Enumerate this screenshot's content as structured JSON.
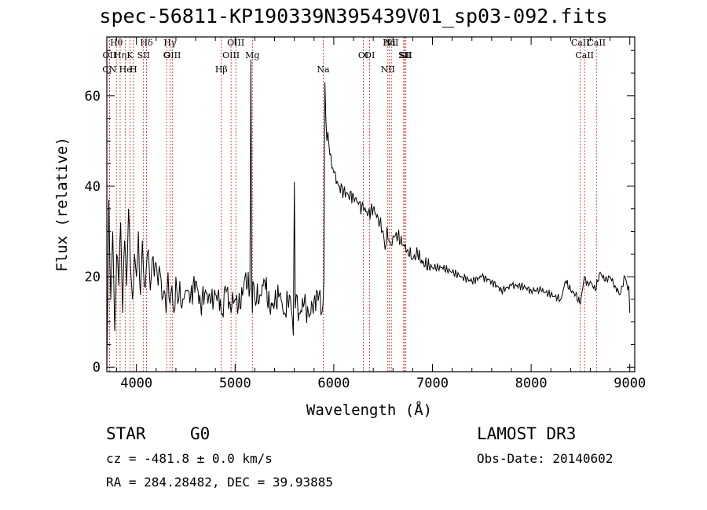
{
  "title": "spec-56811-KP190339N395439V01_sp03-092.fits",
  "info": {
    "object_class": "STAR",
    "subclass": "G0",
    "cz": "cz = -481.8 ± 0.0 km/s",
    "coords": "RA = 284.28482, DEC =  39.93885",
    "survey": "LAMOST DR3",
    "obs_date": "Obs-Date: 20140602"
  },
  "colors": {
    "spectrum": "#000000",
    "line_marker": "#c8281e",
    "axis": "#000000"
  },
  "chart_data": {
    "type": "line",
    "title": "spec-56811-KP190339N395439V01_sp03-092.fits",
    "xlabel": "Wavelength (Å)",
    "ylabel": "Flux (relative)",
    "xlim": [
      3700,
      9050
    ],
    "ylim": [
      -1,
      73
    ],
    "xticks": [
      4000,
      5000,
      6000,
      7000,
      8000,
      9000
    ],
    "yticks": [
      0,
      20,
      40,
      60
    ],
    "series": [
      {
        "name": "flux",
        "x": [
          3700,
          3720,
          3740,
          3760,
          3780,
          3800,
          3820,
          3840,
          3860,
          3880,
          3900,
          3920,
          3940,
          3960,
          3980,
          4000,
          4020,
          4040,
          4060,
          4080,
          4100,
          4120,
          4140,
          4160,
          4180,
          4200,
          4220,
          4240,
          4260,
          4280,
          4300,
          4320,
          4340,
          4360,
          4380,
          4400,
          4420,
          4440,
          4460,
          4480,
          4500,
          4550,
          4600,
          4650,
          4700,
          4750,
          4800,
          4850,
          4880,
          4900,
          4950,
          5000,
          5050,
          5100,
          5150,
          5160,
          5170,
          5175,
          5180,
          5200,
          5250,
          5300,
          5350,
          5400,
          5450,
          5500,
          5550,
          5580,
          5590,
          5600,
          5610,
          5620,
          5650,
          5700,
          5750,
          5800,
          5850,
          5880,
          5900,
          5910,
          5920,
          5930,
          5940,
          5960,
          5980,
          6000,
          6050,
          6100,
          6150,
          6200,
          6250,
          6300,
          6350,
          6400,
          6450,
          6500,
          6520,
          6540,
          6560,
          6580,
          6600,
          6650,
          6700,
          6750,
          6800,
          6850,
          6900,
          7000,
          7100,
          7200,
          7300,
          7400,
          7500,
          7600,
          7700,
          7800,
          7900,
          8000,
          8100,
          8200,
          8300,
          8350,
          8400,
          8450,
          8500,
          8540,
          8560,
          8600,
          8650,
          8700,
          8750,
          8800,
          8850,
          8900,
          8950,
          8980,
          8990,
          9000
        ],
        "y": [
          0,
          37,
          15,
          30,
          8,
          25,
          18,
          32,
          12,
          28,
          18,
          35,
          22,
          15,
          25,
          20,
          30,
          16,
          28,
          18,
          22,
          26,
          17,
          24,
          20,
          23,
          18,
          21,
          15,
          17,
          12,
          21,
          14,
          18,
          12,
          20,
          14,
          19,
          13,
          15,
          17,
          16,
          19,
          14,
          17,
          14,
          16,
          15,
          11,
          18,
          14,
          15,
          13,
          20,
          17,
          68,
          17,
          12,
          19,
          15,
          16,
          19,
          13,
          14,
          16,
          12,
          16,
          11,
          7,
          41,
          13,
          16,
          12,
          14,
          11,
          15,
          16,
          12,
          19,
          63,
          55,
          50,
          52,
          47,
          44,
          43,
          40,
          39,
          38,
          38,
          36,
          35,
          34,
          35,
          33,
          30,
          26,
          31,
          28,
          27,
          29,
          29,
          27,
          26,
          24,
          25,
          23,
          22,
          22,
          21,
          20,
          19,
          20,
          19,
          17,
          18,
          18,
          17,
          17,
          16,
          15,
          19,
          17,
          16,
          14,
          20,
          18,
          19,
          17,
          21,
          19,
          20,
          18,
          16,
          20,
          17,
          18,
          12
        ]
      }
    ],
    "lines_upper": [
      {
        "label": "Hθ",
        "x": 3797
      },
      {
        "label": "K",
        "x": 3934
      },
      {
        "label": "Hδ",
        "x": 4102
      },
      {
        "label": "OIII",
        "x": 4363
      },
      {
        "label": "Hγ",
        "x": 4340
      },
      {
        "label": "OIII",
        "x": 4959
      },
      {
        "label": "OIII",
        "x": 5007
      },
      {
        "label": "OI",
        "x": 6300
      },
      {
        "label": "Hα",
        "x": 6563
      },
      {
        "label": "SII",
        "x": 6717
      },
      {
        "label": "NII",
        "x": 6584
      },
      {
        "label": "Li",
        "x": 6708
      },
      {
        "label": "CaII",
        "x": 8498
      },
      {
        "label": "CaII",
        "x": 8542
      },
      {
        "label": "CaII",
        "x": 8662
      }
    ],
    "lines_lower": [
      {
        "label": "OII",
        "x": 3727
      },
      {
        "label": "He",
        "x": 3889
      },
      {
        "label": "SII",
        "x": 4072
      },
      {
        "label": "CN",
        "x": 3726
      },
      {
        "label": "Hη",
        "x": 3835
      },
      {
        "label": "H",
        "x": 3969
      },
      {
        "label": "G",
        "x": 4305
      },
      {
        "label": "Hβ",
        "x": 4861
      },
      {
        "label": "Mg",
        "x": 5175
      },
      {
        "label": "Na",
        "x": 5893
      },
      {
        "label": "OI",
        "x": 6364
      },
      {
        "label": "NII",
        "x": 6548
      },
      {
        "label": "SII",
        "x": 6731
      }
    ]
  }
}
